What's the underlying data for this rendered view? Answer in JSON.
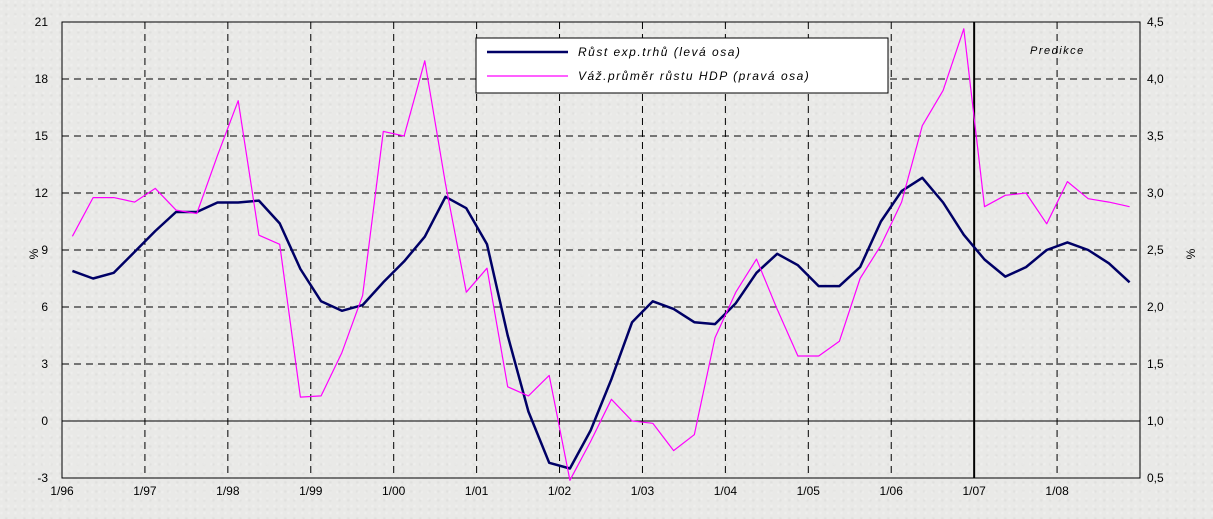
{
  "chart_data": {
    "type": "line",
    "x": [
      "1/96",
      "2/96",
      "3/96",
      "4/96",
      "1/97",
      "2/97",
      "3/97",
      "4/97",
      "1/98",
      "2/98",
      "3/98",
      "4/98",
      "1/99",
      "2/99",
      "3/99",
      "4/99",
      "1/00",
      "2/00",
      "3/00",
      "4/00",
      "1/01",
      "2/01",
      "3/01",
      "4/01",
      "1/02",
      "2/02",
      "3/02",
      "4/02",
      "1/03",
      "2/03",
      "3/03",
      "4/03",
      "1/04",
      "2/04",
      "3/04",
      "4/04",
      "1/05",
      "2/05",
      "3/05",
      "4/05",
      "1/06",
      "2/06",
      "3/06",
      "4/06",
      "1/07",
      "2/07",
      "3/07",
      "4/07",
      "1/08",
      "2/08",
      "3/08",
      "4/08"
    ],
    "x_tick_labels": [
      "1/96",
      "1/97",
      "1/98",
      "1/99",
      "1/00",
      "1/01",
      "1/02",
      "1/03",
      "1/04",
      "1/05",
      "1/06",
      "1/07",
      "1/08"
    ],
    "series": [
      {
        "name": "Růst exp.trhů (levá osa)",
        "axis": "left",
        "color": "#000066",
        "values": [
          7.9,
          7.5,
          7.8,
          8.9,
          10.0,
          11.0,
          11.0,
          11.5,
          11.5,
          11.6,
          10.4,
          8.0,
          6.3,
          5.8,
          6.1,
          7.3,
          8.4,
          9.7,
          11.8,
          11.2,
          9.3,
          4.5,
          0.5,
          -2.2,
          -2.5,
          -0.5,
          2.2,
          5.2,
          6.3,
          5.9,
          5.2,
          5.1,
          6.2,
          7.8,
          8.8,
          8.2,
          7.1,
          7.1,
          8.1,
          10.5,
          12.1,
          12.8,
          11.5,
          9.8,
          8.5,
          7.6,
          8.1,
          9.0,
          9.4,
          9.0,
          8.3,
          7.3
        ]
      },
      {
        "name": "Váž.průměr růstu HDP (pravá osa)",
        "axis": "right",
        "color": "#ff00ff",
        "values": [
          2.62,
          2.96,
          2.96,
          2.92,
          3.04,
          2.85,
          2.82,
          3.33,
          3.81,
          2.63,
          2.55,
          1.21,
          1.22,
          1.6,
          2.1,
          3.54,
          3.5,
          4.16,
          3.08,
          2.13,
          2.34,
          1.3,
          1.22,
          1.4,
          0.48,
          0.82,
          1.19,
          1.0,
          0.98,
          0.74,
          0.88,
          1.73,
          2.13,
          2.42,
          1.98,
          1.57,
          1.57,
          1.7,
          2.25,
          2.54,
          2.92,
          3.59,
          3.9,
          4.44,
          2.88,
          2.98,
          3.0,
          2.73,
          3.1,
          2.95,
          2.92,
          2.88
        ]
      }
    ],
    "ylim_left": [
      -3,
      21
    ],
    "ylim_right": [
      0.5,
      4.5
    ],
    "yticks_left": [
      "21",
      "18",
      "15",
      "12",
      "9",
      "6",
      "3",
      "0",
      "-3"
    ],
    "yticks_right": [
      "4,5",
      "4,0",
      "3,5",
      "3,0",
      "2,5",
      "2,0",
      "1,5",
      "1,0",
      "0,5"
    ],
    "ylabel_left": "%",
    "ylabel_right": "%",
    "annotation": "Predikce",
    "prediction_start": "1/07",
    "legend_placement": "top-center",
    "grid": true
  }
}
